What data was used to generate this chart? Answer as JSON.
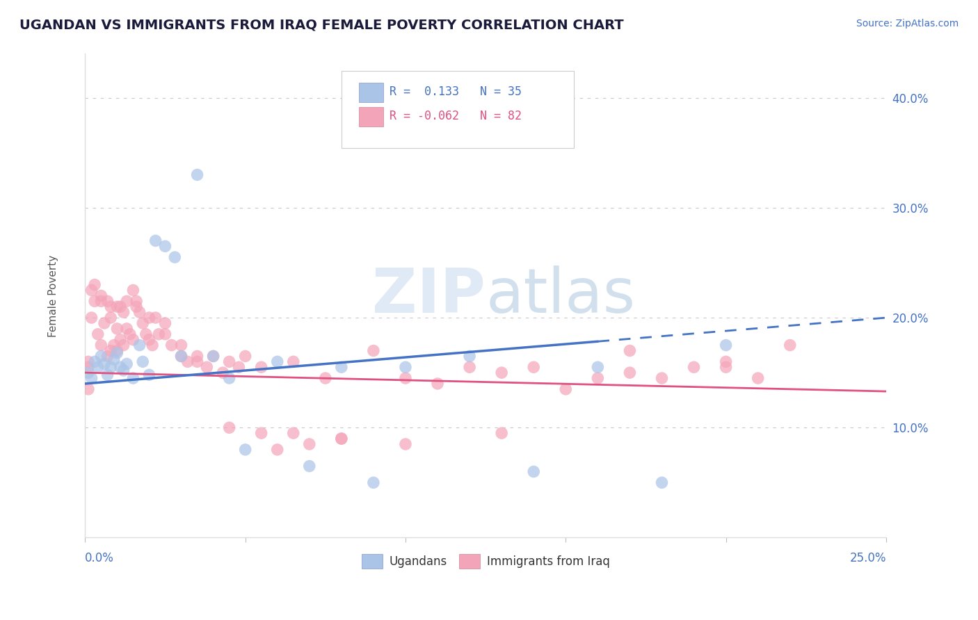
{
  "title": "UGANDAN VS IMMIGRANTS FROM IRAQ FEMALE POVERTY CORRELATION CHART",
  "source": "Source: ZipAtlas.com",
  "ylabel": "Female Poverty",
  "xmin": 0.0,
  "xmax": 0.25,
  "ymin": 0.0,
  "ymax": 0.44,
  "ugandan_R": 0.133,
  "ugandan_N": 35,
  "iraq_R": -0.062,
  "iraq_N": 82,
  "ugandan_color": "#aac4e8",
  "iraq_color": "#f4a4b8",
  "ugandan_line_color": "#4472c4",
  "iraq_line_color": "#e05080",
  "background_color": "#ffffff",
  "legend_ugandan_label": "R =  0.133   N = 35",
  "legend_iraq_label": "R = -0.062   N = 82",
  "ugandans_legend": "Ugandans",
  "iraq_legend": "Immigrants from Iraq",
  "ugandan_scatter_x": [
    0.001,
    0.002,
    0.003,
    0.004,
    0.005,
    0.006,
    0.007,
    0.008,
    0.009,
    0.01,
    0.011,
    0.012,
    0.013,
    0.015,
    0.017,
    0.018,
    0.02,
    0.022,
    0.025,
    0.028,
    0.03,
    0.035,
    0.04,
    0.045,
    0.05,
    0.06,
    0.07,
    0.08,
    0.09,
    0.1,
    0.12,
    0.14,
    0.16,
    0.18,
    0.2
  ],
  "ugandan_scatter_y": [
    0.15,
    0.145,
    0.16,
    0.155,
    0.165,
    0.158,
    0.148,
    0.155,
    0.162,
    0.168,
    0.155,
    0.152,
    0.158,
    0.145,
    0.175,
    0.16,
    0.148,
    0.27,
    0.265,
    0.255,
    0.165,
    0.33,
    0.165,
    0.145,
    0.08,
    0.16,
    0.065,
    0.155,
    0.05,
    0.155,
    0.165,
    0.06,
    0.155,
    0.05,
    0.175
  ],
  "iraq_scatter_x": [
    0.001,
    0.001,
    0.002,
    0.002,
    0.003,
    0.004,
    0.005,
    0.005,
    0.006,
    0.007,
    0.007,
    0.008,
    0.008,
    0.009,
    0.01,
    0.01,
    0.011,
    0.011,
    0.012,
    0.012,
    0.013,
    0.014,
    0.015,
    0.015,
    0.016,
    0.017,
    0.018,
    0.019,
    0.02,
    0.021,
    0.022,
    0.023,
    0.025,
    0.027,
    0.03,
    0.032,
    0.035,
    0.038,
    0.04,
    0.043,
    0.045,
    0.048,
    0.05,
    0.055,
    0.06,
    0.065,
    0.07,
    0.075,
    0.08,
    0.09,
    0.1,
    0.11,
    0.12,
    0.13,
    0.14,
    0.15,
    0.16,
    0.17,
    0.18,
    0.19,
    0.2,
    0.21,
    0.001,
    0.003,
    0.005,
    0.008,
    0.01,
    0.013,
    0.016,
    0.02,
    0.025,
    0.03,
    0.035,
    0.045,
    0.055,
    0.065,
    0.08,
    0.1,
    0.13,
    0.17,
    0.2,
    0.22
  ],
  "iraq_scatter_y": [
    0.16,
    0.155,
    0.225,
    0.2,
    0.215,
    0.185,
    0.175,
    0.22,
    0.195,
    0.165,
    0.215,
    0.17,
    0.2,
    0.175,
    0.17,
    0.19,
    0.18,
    0.21,
    0.175,
    0.205,
    0.19,
    0.185,
    0.18,
    0.225,
    0.215,
    0.205,
    0.195,
    0.185,
    0.18,
    0.175,
    0.2,
    0.185,
    0.195,
    0.175,
    0.175,
    0.16,
    0.165,
    0.155,
    0.165,
    0.15,
    0.16,
    0.155,
    0.165,
    0.155,
    0.08,
    0.16,
    0.085,
    0.145,
    0.09,
    0.17,
    0.145,
    0.14,
    0.155,
    0.15,
    0.155,
    0.135,
    0.145,
    0.15,
    0.145,
    0.155,
    0.16,
    0.145,
    0.135,
    0.23,
    0.215,
    0.21,
    0.21,
    0.215,
    0.21,
    0.2,
    0.185,
    0.165,
    0.16,
    0.1,
    0.095,
    0.095,
    0.09,
    0.085,
    0.095,
    0.17,
    0.155,
    0.175
  ]
}
